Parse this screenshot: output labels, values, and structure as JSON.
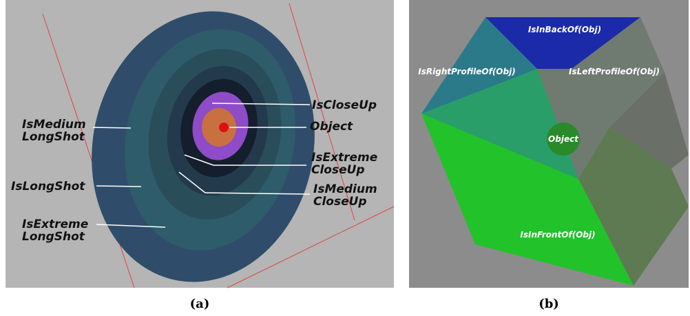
{
  "panels": [
    {
      "caption": "(a)",
      "labels": [
        {
          "lines": [
            "IsCloseUp"
          ]
        },
        {
          "lines": [
            "Object"
          ]
        },
        {
          "lines": [
            "IsExtreme",
            "CloseUp"
          ]
        },
        {
          "lines": [
            "IsMedium",
            "CloseUp"
          ]
        },
        {
          "lines": [
            "IsMedium",
            "LongShot"
          ]
        },
        {
          "lines": [
            "IsLongShot"
          ]
        },
        {
          "lines": [
            "IsExtreme",
            "LongShot"
          ]
        }
      ]
    },
    {
      "caption": "(b)",
      "labels": [
        {
          "lines": [
            "IsInBackOf(Obj)"
          ]
        },
        {
          "lines": [
            "IsRightProfileOf(Obj)"
          ]
        },
        {
          "lines": [
            "IsLeftProfileOf(Obj)"
          ]
        },
        {
          "lines": [
            "Object"
          ]
        },
        {
          "lines": [
            "IsInFrontOf(Obj)"
          ]
        }
      ]
    }
  ]
}
